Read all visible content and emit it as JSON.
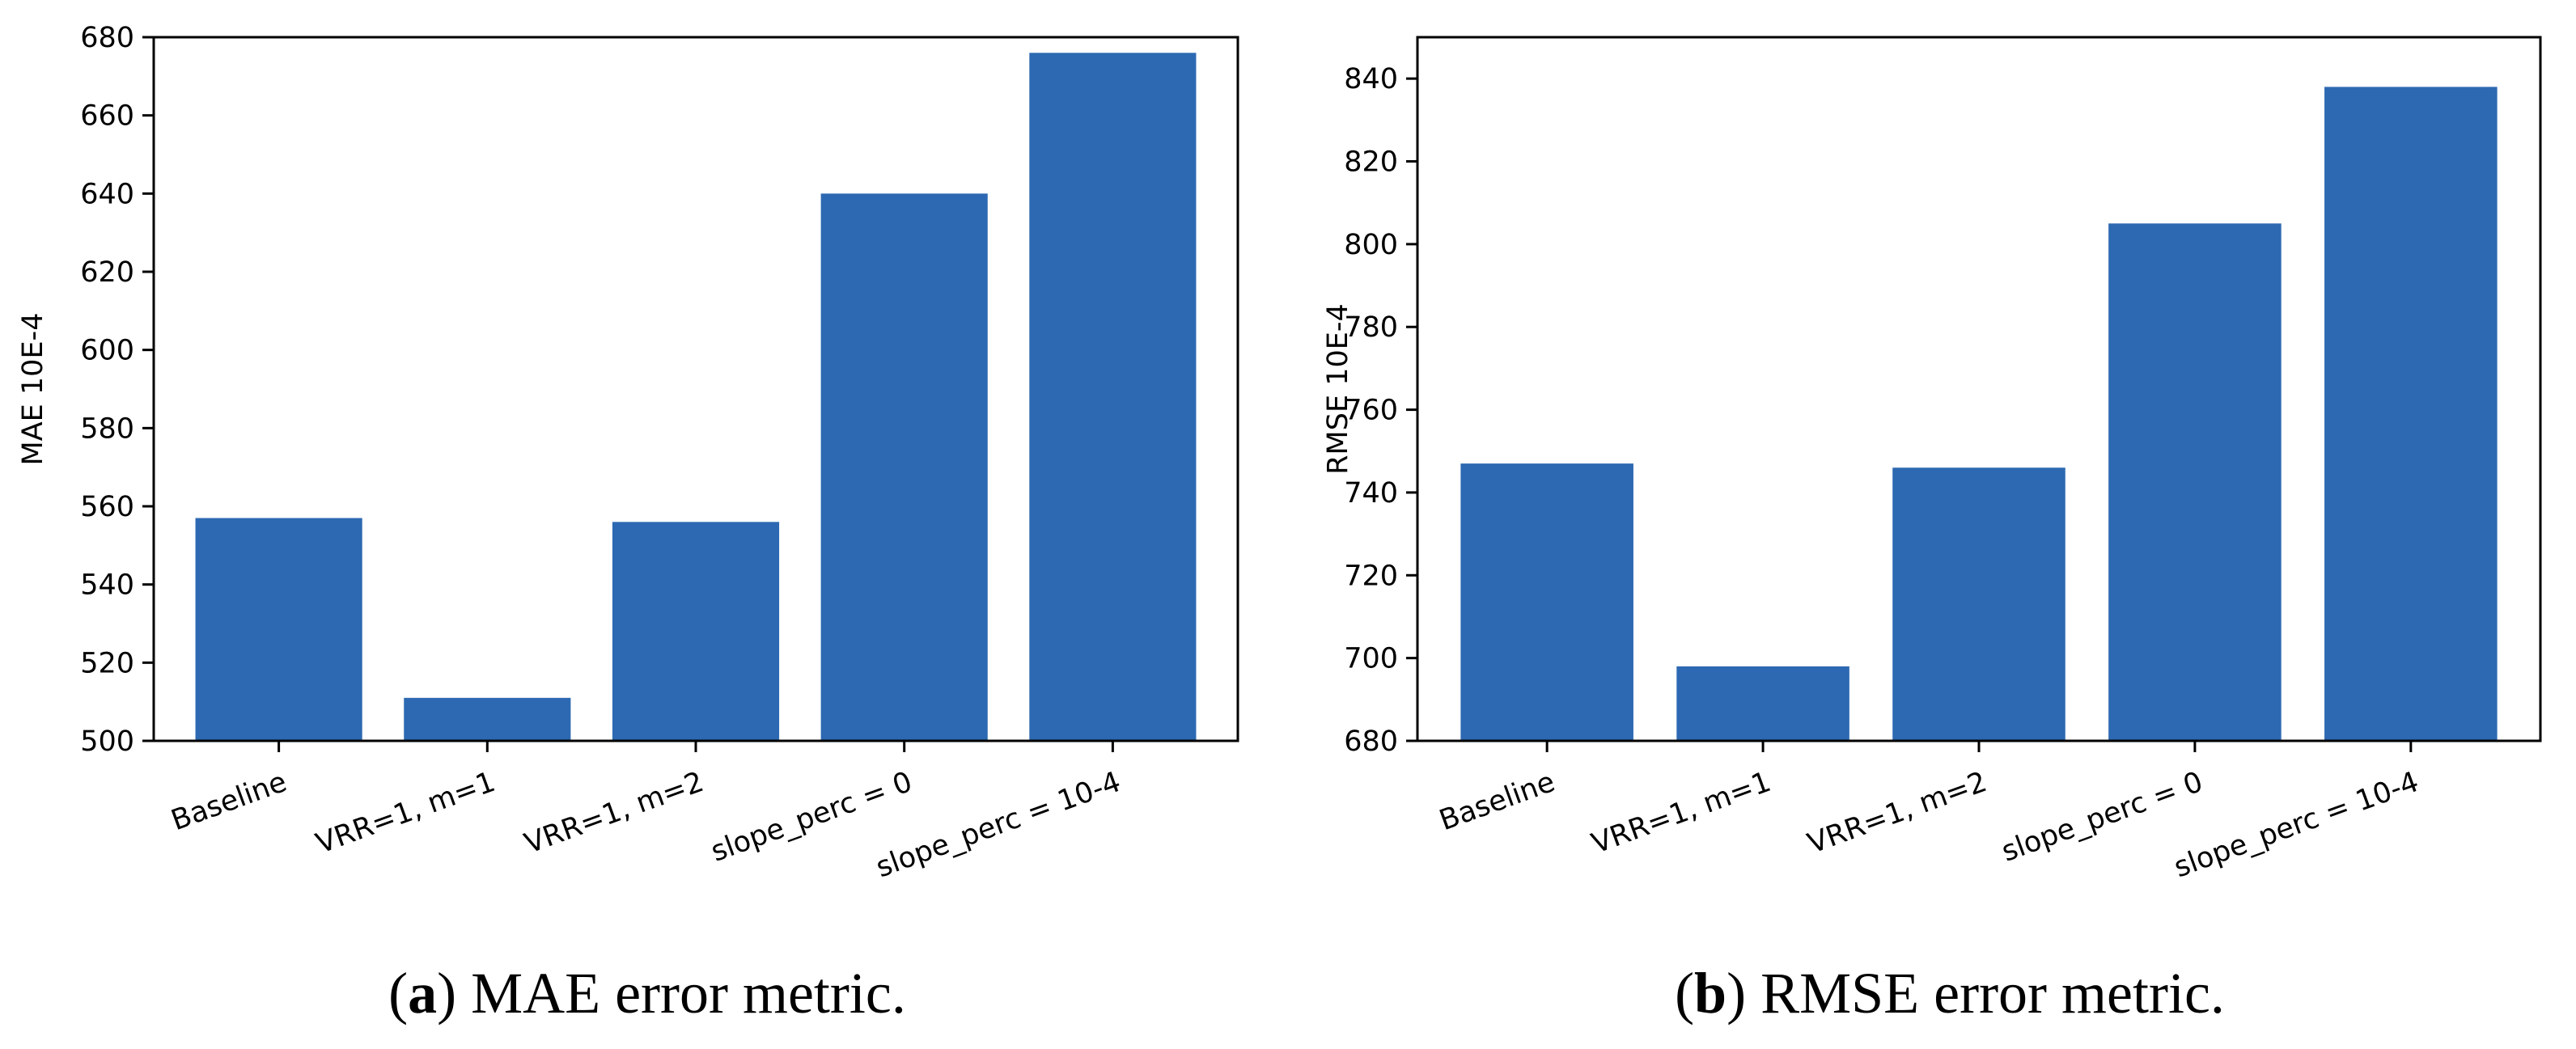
{
  "bar_color": "#2d69b2",
  "chart_data": [
    {
      "type": "bar",
      "panel": "a",
      "title": "",
      "caption_letter": "a",
      "caption_text": "MAE error metric.",
      "xlabel": "",
      "ylabel": "MAE 10E-4",
      "categories": [
        "Baseline",
        "VRR=1, m=1",
        "VRR=1, m=2",
        "slope_perc = 0",
        "slope_perc = 10-4"
      ],
      "values": [
        557,
        511,
        556,
        640,
        676
      ],
      "ylim": [
        500,
        680
      ],
      "yticks": [
        500,
        520,
        540,
        560,
        580,
        600,
        620,
        640,
        660,
        680
      ],
      "grid": false
    },
    {
      "type": "bar",
      "panel": "b",
      "title": "",
      "caption_letter": "b",
      "caption_text": "RMSE error metric.",
      "xlabel": "",
      "ylabel": "RMSE 10E-4",
      "categories": [
        "Baseline",
        "VRR=1, m=1",
        "VRR=1, m=2",
        "slope_perc = 0",
        "slope_perc = 10-4"
      ],
      "values": [
        747,
        698,
        746,
        805,
        838
      ],
      "ylim": [
        680,
        850
      ],
      "yticks": [
        680,
        700,
        720,
        740,
        760,
        780,
        800,
        820,
        840
      ],
      "grid": false
    }
  ]
}
